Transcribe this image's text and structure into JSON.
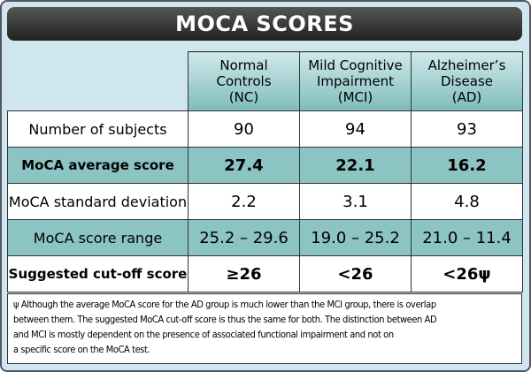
{
  "header": {
    "title": "MOCA SCORES"
  },
  "table": {
    "columns": [
      [
        "Normal",
        "Controls",
        "(NC)"
      ],
      [
        "Mild Cognitive",
        "Impairment",
        "(MCI)"
      ],
      [
        "Alzheimer’s",
        "Disease",
        "(AD)"
      ]
    ],
    "rows": [
      [
        "Number of subjects",
        "90",
        "94",
        "93"
      ],
      [
        "MoCA average score",
        "27.4",
        "22.1",
        "16.2"
      ],
      [
        "MoCA standard deviation",
        "2.2",
        "3.1",
        "4.8"
      ],
      [
        "MoCA score range",
        "25.2 – 29.6",
        "19.0 – 25.2",
        "21.0 – 11.4"
      ],
      [
        "Suggested cut-off score",
        "≥26",
        "<26",
        "<26ψ"
      ]
    ]
  },
  "footnote": [
    "ψ Although the average MoCA score for the AD group is much lower than the MCI group, there is overlap",
    "between them.  The suggested MoCA cut-off score is thus the same for both.  The distinction between AD",
    "and MCI is mostly dependent on the presence of associated functional impairment and not on",
    "a specific score on the MoCA test."
  ]
}
